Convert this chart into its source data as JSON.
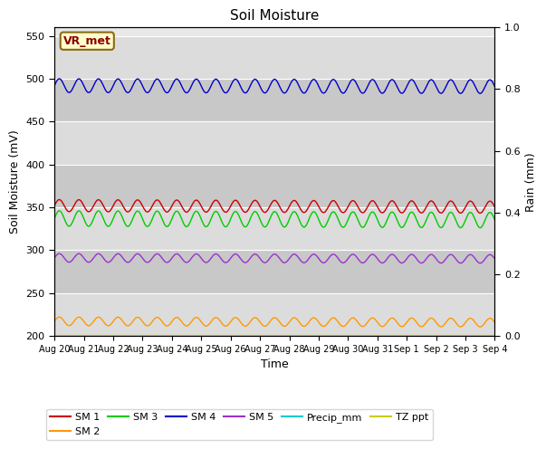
{
  "title": "Soil Moisture",
  "ylabel_left": "Soil Moisture (mV)",
  "ylabel_right": "Rain (mm)",
  "xlabel": "Time",
  "ylim_left": [
    200,
    560
  ],
  "ylim_right": [
    0.0,
    1.0
  ],
  "yticks_left": [
    200,
    250,
    300,
    350,
    400,
    450,
    500,
    550
  ],
  "yticks_right": [
    0.0,
    0.2,
    0.4,
    0.6,
    0.8,
    1.0
  ],
  "xtick_labels": [
    "Aug 20",
    "Aug 21",
    "Aug 22",
    "Aug 23",
    "Aug 24",
    "Aug 25",
    "Aug 26",
    "Aug 27",
    "Aug 28",
    "Aug 29",
    "Aug 30",
    "Aug 31",
    "Sep 1",
    "Sep 2",
    "Sep 3",
    "Sep 4"
  ],
  "sm1_base": 352,
  "sm1_amp": 7,
  "sm1_trend": -0.12,
  "sm1_freq": 1.5,
  "sm1_color": "#cc0000",
  "sm2_base": 217,
  "sm2_amp": 5,
  "sm2_trend": -0.1,
  "sm2_freq": 1.5,
  "sm2_color": "#ff9900",
  "sm3_base": 337,
  "sm3_amp": 9,
  "sm3_trend": -0.13,
  "sm3_freq": 1.5,
  "sm3_color": "#00cc00",
  "sm4_base": 492,
  "sm4_amp": 8,
  "sm4_trend": -0.08,
  "sm4_freq": 1.5,
  "sm4_color": "#0000cc",
  "sm5_base": 291,
  "sm5_amp": 5,
  "sm5_trend": -0.08,
  "sm5_freq": 1.5,
  "sm5_color": "#9933cc",
  "tz_base": 200,
  "tz_color": "#cccc00",
  "precip_color": "#00cccc",
  "band_colors": [
    "#e0e0e0",
    "#d0d0d0"
  ],
  "bg_color": "#e8e8e8",
  "legend_labels_row1": [
    "SM 1",
    "SM 2",
    "SM 3",
    "SM 4",
    "SM 5",
    "Precip_mm"
  ],
  "legend_colors_row1": [
    "#cc0000",
    "#ff9900",
    "#00cc00",
    "#0000cc",
    "#9933cc",
    "#00cccc"
  ],
  "legend_labels_row2": [
    "TZ ppt"
  ],
  "legend_colors_row2": [
    "#cccc00"
  ],
  "annotation_text": "VR_met",
  "annotation_color": "#8b0000",
  "annotation_bg": "#ffffcc",
  "annotation_border": "#8b6914"
}
